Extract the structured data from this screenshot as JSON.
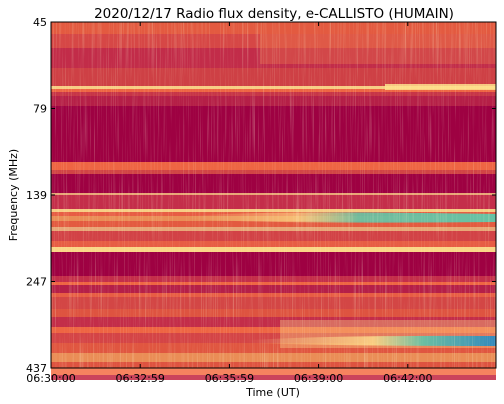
{
  "chart_data": {
    "type": "heatmap",
    "title": "2020/12/17  Radio flux density, e-CALLISTO (HUMAIN)",
    "xlabel": "Time (UT)",
    "ylabel": "Frequency (MHz)",
    "x_ticks": [
      "06:30:00",
      "06:32:59",
      "06:35:59",
      "06:39:00",
      "06:42:00"
    ],
    "y_ticks": [
      "45",
      "79",
      "139",
      "247",
      "437"
    ],
    "y_scale": "log",
    "ylim_mhz": [
      437,
      45
    ],
    "colormap": "Spectral_r",
    "colors": {
      "low": "#9e0142",
      "mid": "#f46d43",
      "high": "#fee08b",
      "peak": "#66c2a5",
      "max": "#3288bd"
    }
  }
}
